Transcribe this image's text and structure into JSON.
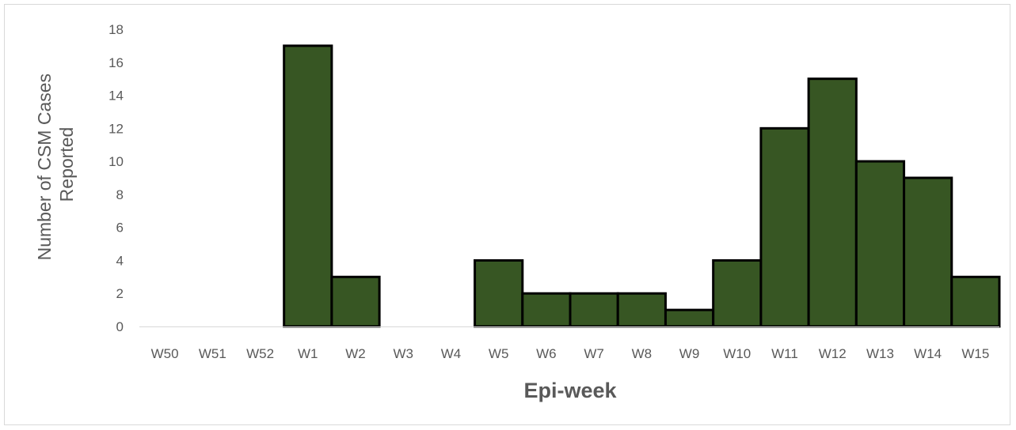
{
  "chart_data": {
    "type": "bar",
    "title": "",
    "xlabel": "Epi-week",
    "ylabel_lines": [
      "Number of CSM Cases",
      "Reported"
    ],
    "categories": [
      "W50",
      "W51",
      "W52",
      "W1",
      "W2",
      "W3",
      "W4",
      "W5",
      "W6",
      "W7",
      "W8",
      "W9",
      "W10",
      "W11",
      "W12",
      "W13",
      "W14",
      "W15"
    ],
    "values": [
      0,
      0,
      0,
      17,
      3,
      0,
      0,
      4,
      2,
      2,
      2,
      1,
      4,
      12,
      15,
      10,
      9,
      3
    ],
    "ylim": [
      0,
      18
    ],
    "yticks": [
      0,
      2,
      4,
      6,
      8,
      10,
      12,
      14,
      16,
      18
    ],
    "grid": false,
    "legend": "none",
    "colors": {
      "bar_fill": "#375623",
      "bar_stroke": "#000000",
      "axis": "#d9d9d9",
      "text": "#595959"
    }
  }
}
